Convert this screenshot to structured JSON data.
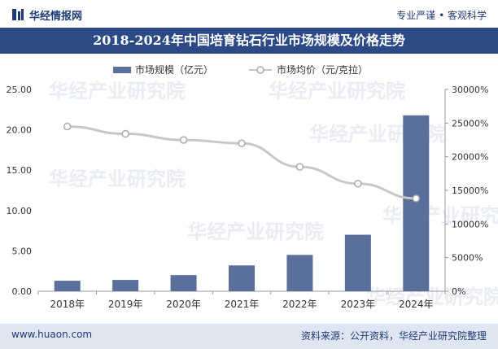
{
  "header": {
    "brand": "华经情报网",
    "tagline": "专业严谨 • 客观科学"
  },
  "title": "2018-2024年中国培育钻石行业市场规模及价格走势",
  "footer": {
    "url": "www.huaon.com",
    "source": "资料来源：公开资料，华经产业研究院整理"
  },
  "watermark": "华经产业研究院",
  "colors": {
    "bar": "#5a6f9a",
    "line": "#c8c8c8",
    "title_bg": "#2b4a86",
    "brand": "#1f3b73"
  },
  "chart_data": {
    "type": "bar+line",
    "categories": [
      "2018年",
      "2019年",
      "2020年",
      "2021年",
      "2022年",
      "2023年",
      "2024年"
    ],
    "series": [
      {
        "name": "市场规模（亿元）",
        "type": "bar",
        "axis": "left",
        "values": [
          1.3,
          1.4,
          2.0,
          3.2,
          4.5,
          7.0,
          21.8
        ]
      },
      {
        "name": "市场均价（元/克拉）",
        "type": "line",
        "axis": "right",
        "values": [
          24500,
          23400,
          22500,
          22000,
          18500,
          16000,
          13800
        ]
      }
    ],
    "left_axis": {
      "ylim": [
        0,
        25
      ],
      "ticks": [
        "0.00",
        "5.00",
        "10.00",
        "15.00",
        "20.00",
        "25.00"
      ]
    },
    "right_axis": {
      "ylim": [
        0,
        30000
      ],
      "ticks": [
        "0%",
        "5000%",
        "10000%",
        "15000%",
        "20000%",
        "25000%",
        "30000%"
      ]
    },
    "legend": "top-center",
    "grid": false
  }
}
